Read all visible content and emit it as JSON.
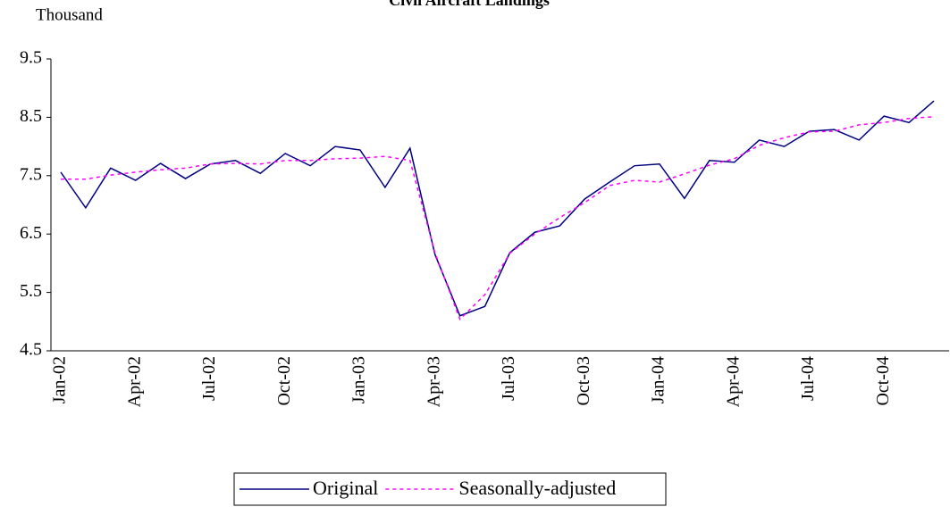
{
  "chart_data": {
    "type": "line",
    "title": "Civil Aircraft Landings",
    "y_label": "Thousand",
    "categories": [
      "Jan-02",
      null,
      null,
      "Apr-02",
      null,
      null,
      "Jul-02",
      null,
      null,
      "Oct-02",
      null,
      null,
      "Jan-03",
      null,
      null,
      "Apr-03",
      null,
      null,
      "Jul-03",
      null,
      null,
      "Oct-03",
      null,
      null,
      "Jan-04",
      null,
      null,
      "Apr-04",
      null,
      null,
      "Jul-04",
      null,
      null,
      "Oct-04",
      null,
      null
    ],
    "series": [
      {
        "name": "Original",
        "color": "#000080",
        "style": "solid",
        "values": [
          7.56,
          6.95,
          7.63,
          7.42,
          7.71,
          7.45,
          7.7,
          7.76,
          7.54,
          7.88,
          7.67,
          8.0,
          7.94,
          7.3,
          7.97,
          6.15,
          5.1,
          5.26,
          6.18,
          6.53,
          6.64,
          7.1,
          7.39,
          7.67,
          7.7,
          7.11,
          7.76,
          7.73,
          8.11,
          8.0,
          8.26,
          8.29,
          8.11,
          8.52,
          8.41,
          8.78
        ]
      },
      {
        "name": "Seasonally-adjusted",
        "color": "#ff00ff",
        "style": "dotted",
        "values": [
          7.44,
          7.44,
          7.51,
          7.56,
          7.6,
          7.63,
          7.7,
          7.71,
          7.7,
          7.76,
          7.76,
          7.79,
          7.8,
          7.83,
          7.76,
          6.18,
          5.04,
          5.46,
          6.17,
          6.5,
          6.78,
          7.04,
          7.33,
          7.42,
          7.39,
          7.53,
          7.68,
          7.79,
          8.02,
          8.15,
          8.25,
          8.26,
          8.37,
          8.41,
          8.48,
          8.51
        ]
      }
    ],
    "ylim": [
      4.5,
      9.5
    ],
    "yticks": [
      4.5,
      5.5,
      6.5,
      7.5,
      8.5,
      9.5
    ],
    "grid": false,
    "legend": "bottom"
  }
}
